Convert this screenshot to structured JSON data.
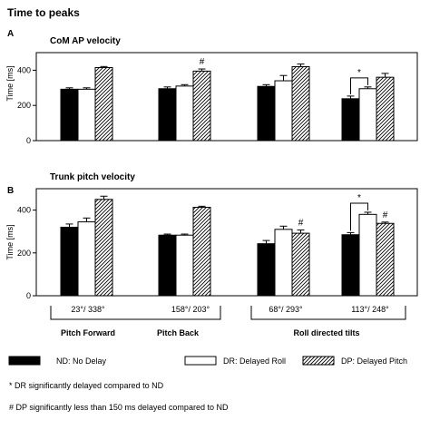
{
  "figure": {
    "title": "Time to peaks",
    "categories": [
      "23°/ 338°",
      "158°/ 203°",
      "68°/ 293°",
      "113°/ 248°"
    ],
    "groups": [
      "Pitch Forward",
      "Pitch Back",
      "Roll directed tilts"
    ],
    "legend": [
      {
        "key": "nd",
        "label": "ND: No Delay",
        "fill": "#000000"
      },
      {
        "key": "dr",
        "label": "DR: Delayed Roll",
        "fill": "#ffffff"
      },
      {
        "key": "dp",
        "label": "DP: Delayed Pitch",
        "fill": "hatch"
      }
    ],
    "notes": [
      "* DR significantly delayed compared to ND",
      "# DP significantly less than 150 ms delayed compared to ND"
    ]
  },
  "chart_data": [
    {
      "type": "bar",
      "panel": "A",
      "title": "CoM AP velocity",
      "ylabel": "Time [ms]",
      "ylim": [
        0,
        500
      ],
      "yticks": [
        0,
        200,
        400
      ],
      "categories": [
        "23°/ 338°",
        "158°/ 203°",
        "68°/ 293°",
        "113°/ 248°"
      ],
      "series": [
        {
          "name": "ND: No Delay",
          "values": [
            292,
            295,
            308,
            238
          ],
          "errors": [
            8,
            10,
            10,
            15
          ]
        },
        {
          "name": "DR: Delayed Roll",
          "values": [
            292,
            310,
            340,
            295
          ],
          "errors": [
            8,
            8,
            30,
            10
          ]
        },
        {
          "name": "DP: Delayed Pitch",
          "values": [
            415,
            395,
            420,
            360
          ],
          "errors": [
            6,
            12,
            15,
            22
          ]
        }
      ],
      "annotations": [
        {
          "symbol": "#",
          "category": "158°/ 203°",
          "series": "DP: Delayed Pitch"
        },
        {
          "symbol": "*",
          "category": "113°/ 248°",
          "between": [
            "ND: No Delay",
            "DR: Delayed Roll"
          ]
        }
      ]
    },
    {
      "type": "bar",
      "panel": "B",
      "title": "Trunk pitch velocity",
      "ylabel": "Time [ms]",
      "ylim": [
        0,
        500
      ],
      "yticks": [
        0,
        200,
        400
      ],
      "categories": [
        "23°/ 338°",
        "158°/ 203°",
        "68°/ 293°",
        "113°/ 248°"
      ],
      "series": [
        {
          "name": "ND: No Delay",
          "values": [
            320,
            283,
            243,
            285
          ],
          "errors": [
            15,
            5,
            15,
            10
          ]
        },
        {
          "name": "DR: Delayed Roll",
          "values": [
            345,
            283,
            310,
            380
          ],
          "errors": [
            18,
            5,
            15,
            10
          ]
        },
        {
          "name": "DP: Delayed Pitch",
          "values": [
            450,
            413,
            292,
            338
          ],
          "errors": [
            15,
            5,
            15,
            6
          ]
        }
      ],
      "annotations": [
        {
          "symbol": "#",
          "category": "68°/ 293°",
          "series": "DP: Delayed Pitch"
        },
        {
          "symbol": "*",
          "category": "113°/ 248°",
          "between": [
            "ND: No Delay",
            "DR: Delayed Roll"
          ]
        },
        {
          "symbol": "#",
          "category": "113°/ 248°",
          "series": "DP: Delayed Pitch"
        }
      ]
    }
  ]
}
